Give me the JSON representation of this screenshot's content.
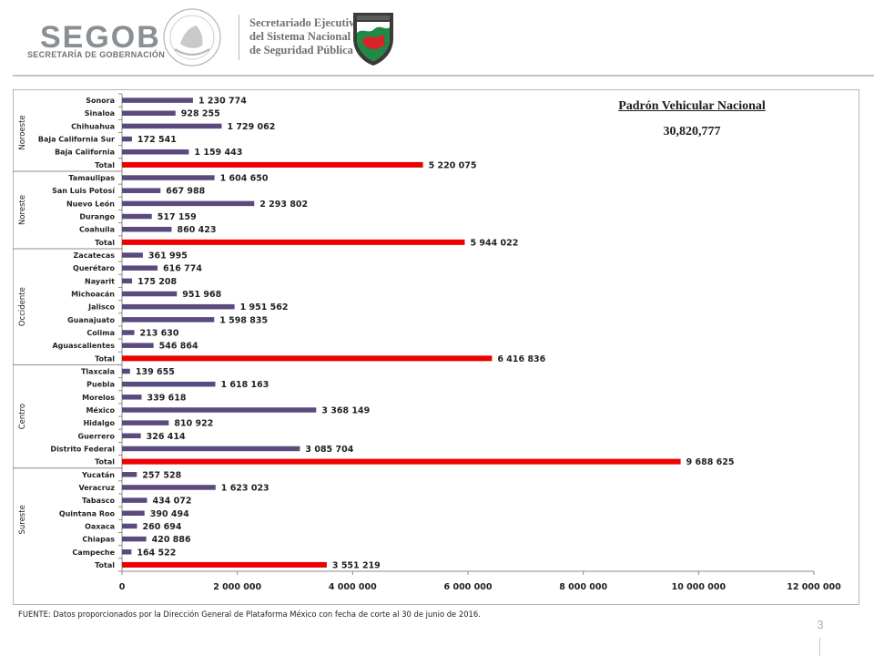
{
  "header": {
    "segob_word": "SEGOB",
    "segob_subtitle": "SECRETARÍA DE GOBERNACIÓN",
    "sesnsp_lines": [
      "Secretariado Ejecutivo",
      "del Sistema Nacional",
      "de Seguridad Pública"
    ]
  },
  "colors": {
    "region_bar": "#5b4a7d",
    "total_bar": "#ee0000"
  },
  "panel": {
    "title": "Padrón Vehicular Nacional",
    "value": "30,820,777"
  },
  "chart_data": {
    "type": "bar",
    "orientation": "horizontal",
    "xlim": [
      0,
      12000000
    ],
    "x_ticks": [
      0,
      2000000,
      4000000,
      6000000,
      8000000,
      10000000,
      12000000
    ],
    "x_tick_labels": [
      "0",
      "2 000 000",
      "4 000 000",
      "6 000 000",
      "8 000 000",
      "10 000 000",
      "12 000 000"
    ],
    "groups": [
      {
        "name": "Noroeste",
        "items": [
          {
            "label": "Sonora",
            "value": 1230774,
            "display": "1 230 774"
          },
          {
            "label": "Sinaloa",
            "value": 928255,
            "display": "928 255"
          },
          {
            "label": "Chihuahua",
            "value": 1729062,
            "display": "1 729 062"
          },
          {
            "label": "Baja California Sur",
            "value": 172541,
            "display": "172 541"
          },
          {
            "label": "Baja California",
            "value": 1159443,
            "display": "1 159 443"
          },
          {
            "label": "Total",
            "value": 5220075,
            "display": "5 220 075",
            "total": true
          }
        ]
      },
      {
        "name": "Noreste",
        "items": [
          {
            "label": "Tamaulipas",
            "value": 1604650,
            "display": "1 604 650"
          },
          {
            "label": "San Luis Potosí",
            "value": 667988,
            "display": "667 988"
          },
          {
            "label": "Nuevo León",
            "value": 2293802,
            "display": "2 293 802"
          },
          {
            "label": "Durango",
            "value": 517159,
            "display": "517 159"
          },
          {
            "label": "Coahuila",
            "value": 860423,
            "display": "860 423"
          },
          {
            "label": "Total",
            "value": 5944022,
            "display": "5 944 022",
            "total": true
          }
        ]
      },
      {
        "name": "Occidente",
        "items": [
          {
            "label": "Zacatecas",
            "value": 361995,
            "display": "361 995"
          },
          {
            "label": "Querétaro",
            "value": 616774,
            "display": "616 774"
          },
          {
            "label": "Nayarit",
            "value": 175208,
            "display": "175 208"
          },
          {
            "label": "Michoacán",
            "value": 951968,
            "display": "951 968"
          },
          {
            "label": "Jalisco",
            "value": 1951562,
            "display": "1 951 562"
          },
          {
            "label": "Guanajuato",
            "value": 1598835,
            "display": "1 598 835"
          },
          {
            "label": "Colima",
            "value": 213630,
            "display": "213 630"
          },
          {
            "label": "Aguascalientes",
            "value": 546864,
            "display": "546 864"
          },
          {
            "label": "Total",
            "value": 6416836,
            "display": "6 416 836",
            "total": true
          }
        ]
      },
      {
        "name": "Centro",
        "items": [
          {
            "label": "Tlaxcala",
            "value": 139655,
            "display": "139 655"
          },
          {
            "label": "Puebla",
            "value": 1618163,
            "display": "1 618 163"
          },
          {
            "label": "Morelos",
            "value": 339618,
            "display": "339 618"
          },
          {
            "label": "México",
            "value": 3368149,
            "display": "3 368 149"
          },
          {
            "label": "Hidalgo",
            "value": 810922,
            "display": "810 922"
          },
          {
            "label": "Guerrero",
            "value": 326414,
            "display": "326 414"
          },
          {
            "label": "Distrito Federal",
            "value": 3085704,
            "display": "3 085 704"
          },
          {
            "label": "Total",
            "value": 9688625,
            "display": "9 688 625",
            "total": true
          }
        ]
      },
      {
        "name": "Sureste",
        "items": [
          {
            "label": "Yucatán",
            "value": 257528,
            "display": "257 528"
          },
          {
            "label": "Veracruz",
            "value": 1623023,
            "display": "1 623 023"
          },
          {
            "label": "Tabasco",
            "value": 434072,
            "display": "434 072"
          },
          {
            "label": "Quintana Roo",
            "value": 390494,
            "display": "390 494"
          },
          {
            "label": "Oaxaca",
            "value": 260694,
            "display": "260 694"
          },
          {
            "label": "Chiapas",
            "value": 420886,
            "display": "420 886"
          },
          {
            "label": "Campeche",
            "value": 164522,
            "display": "164 522"
          },
          {
            "label": "Total",
            "value": 3551219,
            "display": "3 551 219",
            "total": true
          }
        ]
      }
    ]
  },
  "footnote": "FUENTE: Datos proporcionados por la Dirección General de Plataforma México con fecha de corte al 30 de junio de 2016.",
  "page_number": "3"
}
